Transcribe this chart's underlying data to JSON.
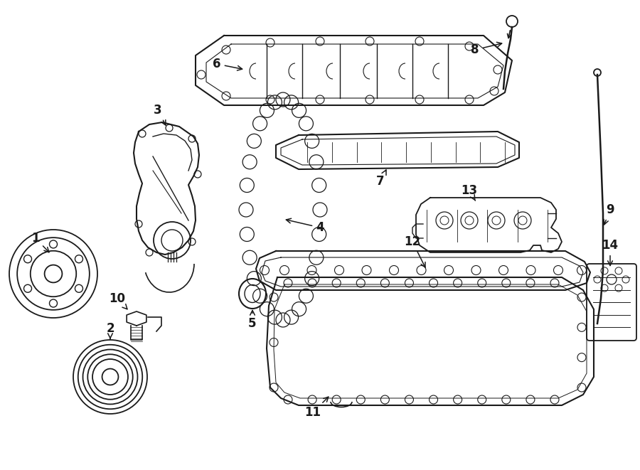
{
  "background_color": "#ffffff",
  "line_color": "#1a1a1a",
  "parts_layout": "engine_diagram"
}
